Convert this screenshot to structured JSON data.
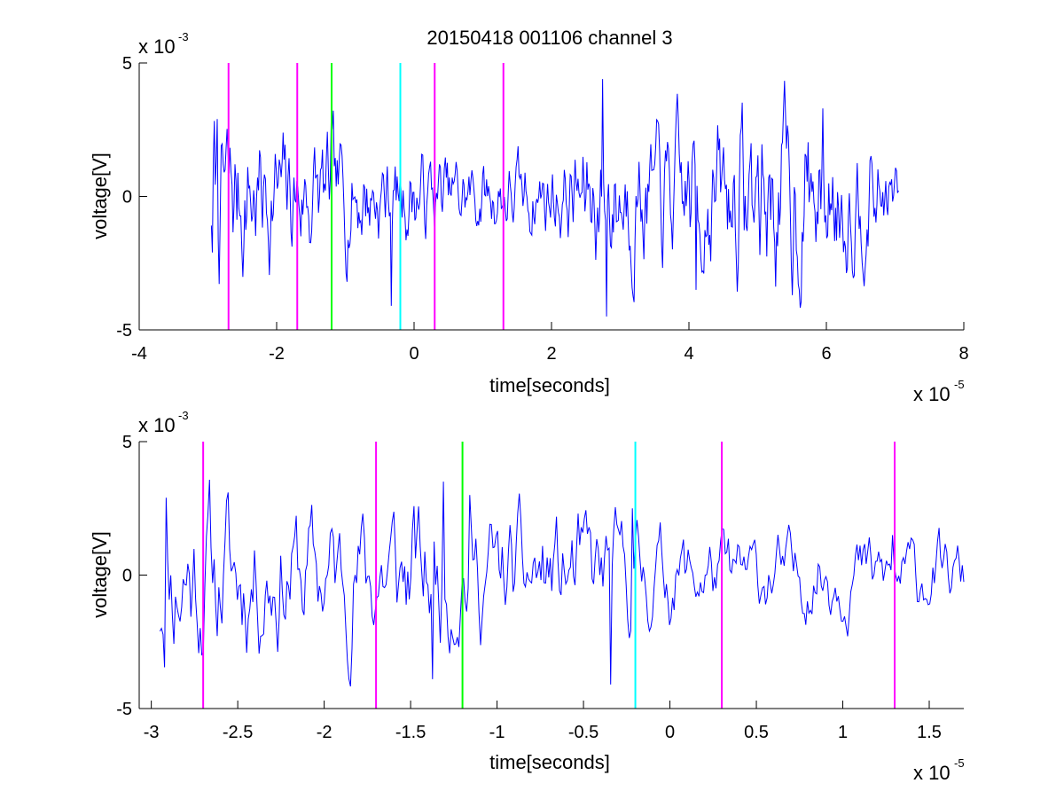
{
  "chart_data": [
    {
      "type": "line",
      "title": "20150418 001106 channel 3",
      "xlabel": "time[seconds]",
      "ylabel": "voltage[V]",
      "x_exponent": {
        "base": "x 10",
        "power": "-5"
      },
      "y_exponent": {
        "base": "x 10",
        "power": "-3"
      },
      "xlim": [
        -4,
        8
      ],
      "ylim": [
        -5,
        5
      ],
      "x_ticks": [
        -4,
        -2,
        0,
        2,
        4,
        6,
        8
      ],
      "x_tick_labels": [
        "-4",
        "-2",
        "0",
        "2",
        "4",
        "6",
        "8"
      ],
      "y_ticks": [
        -5,
        0,
        5
      ],
      "y_tick_labels": [
        "-5",
        "0",
        "5"
      ],
      "grid": false,
      "series": [
        {
          "color": "#0000ff",
          "x_range": [
            -2.95,
            7.05
          ],
          "points": 700,
          "seed": 7,
          "envelope": [
            [
              -2.95,
              2.2
            ],
            [
              -2.0,
              1.6
            ],
            [
              -1.0,
              1.4
            ],
            [
              0.0,
              1.1
            ],
            [
              1.0,
              0.9
            ],
            [
              2.0,
              1.0
            ],
            [
              2.8,
              1.8
            ],
            [
              3.5,
              1.5
            ],
            [
              4.5,
              1.9
            ],
            [
              5.5,
              2.3
            ],
            [
              6.5,
              1.5
            ],
            [
              7.05,
              0.8
            ]
          ],
          "markers": [
            [
              -2.93,
              -2.1
            ],
            [
              -2.87,
              2.9
            ],
            [
              -1.2,
              3.0
            ],
            [
              -0.33,
              -4.1
            ],
            [
              2.8,
              -4.5
            ],
            [
              2.75,
              4.4
            ],
            [
              5.95,
              3.3
            ],
            [
              4.1,
              -3.5
            ]
          ]
        }
      ],
      "event_lines": [
        {
          "x": -2.7,
          "color": "#ff00ff"
        },
        {
          "x": -1.7,
          "color": "#ff00ff"
        },
        {
          "x": -1.2,
          "color": "#00ff00"
        },
        {
          "x": -0.2,
          "color": "#00ffff"
        },
        {
          "x": 0.3,
          "color": "#ff00ff"
        },
        {
          "x": 1.3,
          "color": "#ff00ff"
        }
      ],
      "event_line_yrange": [
        -5,
        5
      ]
    },
    {
      "type": "line",
      "title": "",
      "xlabel": "time[seconds]",
      "ylabel": "voltage[V]",
      "x_exponent": {
        "base": "x 10",
        "power": "-5"
      },
      "y_exponent": {
        "base": "x 10",
        "power": "-3"
      },
      "xlim": [
        -3.07,
        1.7
      ],
      "ylim": [
        -5,
        5
      ],
      "x_ticks": [
        -3,
        -2.5,
        -2,
        -1.5,
        -1,
        -0.5,
        0,
        0.5,
        1,
        1.5
      ],
      "x_tick_labels": [
        "-3",
        "-2.5",
        "-2",
        "-1.5",
        "-1",
        "-0.5",
        "0",
        "0.5",
        "1",
        "1.5"
      ],
      "y_ticks": [
        -5,
        0,
        5
      ],
      "y_tick_labels": [
        "-5",
        "0",
        "5"
      ],
      "grid": false,
      "series": [
        {
          "color": "#0000ff",
          "x_range": [
            -2.95,
            1.7
          ],
          "points": 520,
          "seed": 11,
          "envelope": [
            [
              -2.95,
              2.3
            ],
            [
              -2.5,
              1.9
            ],
            [
              -2.0,
              1.6
            ],
            [
              -1.5,
              1.8
            ],
            [
              -1.0,
              1.4
            ],
            [
              -0.5,
              1.5
            ],
            [
              0.0,
              1.1
            ],
            [
              0.5,
              0.9
            ],
            [
              1.0,
              1.0
            ],
            [
              1.7,
              0.8
            ]
          ],
          "markers": [
            [
              -2.95,
              -2.1
            ],
            [
              -2.91,
              2.9
            ],
            [
              -1.37,
              -3.9
            ],
            [
              -1.31,
              3.5
            ],
            [
              -0.34,
              -4.1
            ],
            [
              -0.22,
              2.5
            ],
            [
              1.29,
              1.5
            ],
            [
              -1.16,
              3.0
            ]
          ]
        }
      ],
      "event_lines": [
        {
          "x": -2.7,
          "color": "#ff00ff"
        },
        {
          "x": -1.7,
          "color": "#ff00ff"
        },
        {
          "x": -1.2,
          "color": "#00ff00"
        },
        {
          "x": -0.2,
          "color": "#00ffff"
        },
        {
          "x": 0.3,
          "color": "#ff00ff"
        },
        {
          "x": 1.3,
          "color": "#ff00ff"
        }
      ],
      "event_line_yrange": [
        -5,
        5
      ]
    }
  ]
}
